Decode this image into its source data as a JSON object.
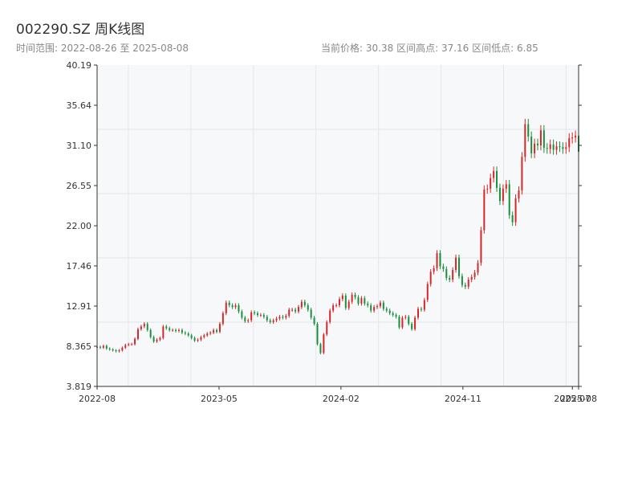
{
  "header": {
    "title": "002290.SZ 周K线图",
    "range_label": "时间范围:",
    "range_start": "2022-08-26",
    "range_sep": "至",
    "range_end": "2025-08-08",
    "price_label": "当前价格:",
    "price_value": "30.38",
    "high_label": "区间高点:",
    "high_value": "37.16",
    "low_label": "区间低点:",
    "low_value": "6.85"
  },
  "colors": {
    "up": "#d62728",
    "down": "#1a8f3c",
    "axis": "#333333",
    "grid": "#e3e6ea",
    "plot_bg": "#f6f8fa"
  },
  "chart_data": {
    "type": "candlestick",
    "title": "002290.SZ 周K线图",
    "xlabel": "",
    "ylabel": "",
    "ylim": [
      3.819,
      40.19
    ],
    "y_ticks": [
      "3.819",
      "8.365",
      "12.91",
      "17.46",
      "22.00",
      "26.55",
      "31.10",
      "35.64",
      "40.19"
    ],
    "x_ticks": [
      {
        "label": "2022-08",
        "date": "2022-08-26"
      },
      {
        "label": "2023-05",
        "date": "2023-05-26"
      },
      {
        "label": "2024-02",
        "date": "2024-02-23"
      },
      {
        "label": "2024-11",
        "date": "2024-11-22"
      },
      {
        "label": "2025-07",
        "date": "2025-07-25"
      },
      {
        "label": "2025-08",
        "date": "2025-08-08"
      }
    ],
    "grid": true,
    "weekly_close": [
      8.3,
      8.2,
      8.4,
      8.1,
      8.0,
      7.9,
      7.8,
      7.9,
      8.2,
      8.5,
      8.6,
      8.6,
      9.2,
      10.3,
      10.6,
      10.9,
      10.2,
      9.4,
      8.9,
      9.1,
      9.3,
      10.6,
      10.4,
      10.2,
      10.2,
      10.1,
      10.2,
      9.9,
      9.8,
      9.6,
      9.3,
      9.0,
      9.1,
      9.4,
      9.6,
      9.8,
      9.9,
      10.2,
      10.0,
      10.9,
      12.1,
      13.3,
      13.0,
      12.8,
      13.0,
      12.3,
      11.6,
      11.2,
      11.3,
      12.2,
      12.1,
      11.9,
      11.9,
      11.7,
      11.3,
      11.1,
      11.3,
      11.5,
      11.7,
      11.6,
      11.8,
      12.5,
      12.5,
      12.3,
      12.8,
      13.4,
      13.0,
      12.5,
      11.6,
      10.9,
      8.6,
      7.6,
      9.7,
      11.1,
      12.4,
      13.0,
      13.0,
      13.7,
      14.1,
      12.7,
      13.4,
      14.2,
      13.9,
      13.2,
      13.8,
      13.2,
      13.0,
      12.4,
      12.8,
      12.9,
      13.3,
      12.6,
      12.4,
      12.1,
      11.9,
      11.7,
      10.5,
      11.6,
      11.7,
      10.9,
      10.3,
      11.6,
      12.6,
      12.5,
      13.6,
      15.4,
      16.8,
      17.2,
      18.9,
      17.4,
      17.1,
      16.1,
      15.9,
      17.0,
      18.4,
      16.3,
      15.3,
      15.1,
      15.9,
      16.2,
      16.7,
      17.8,
      21.5,
      26.1,
      26.2,
      27.4,
      28.2,
      26.3,
      24.8,
      26.2,
      26.7,
      23.2,
      22.4,
      25.1,
      26.0,
      29.8,
      33.5,
      32.1,
      30.2,
      31.3,
      31.1,
      32.8,
      30.8,
      30.7,
      31.2,
      30.6,
      31.0,
      30.9,
      30.7,
      30.9,
      31.9,
      32.0,
      32.2,
      30.38
    ]
  }
}
